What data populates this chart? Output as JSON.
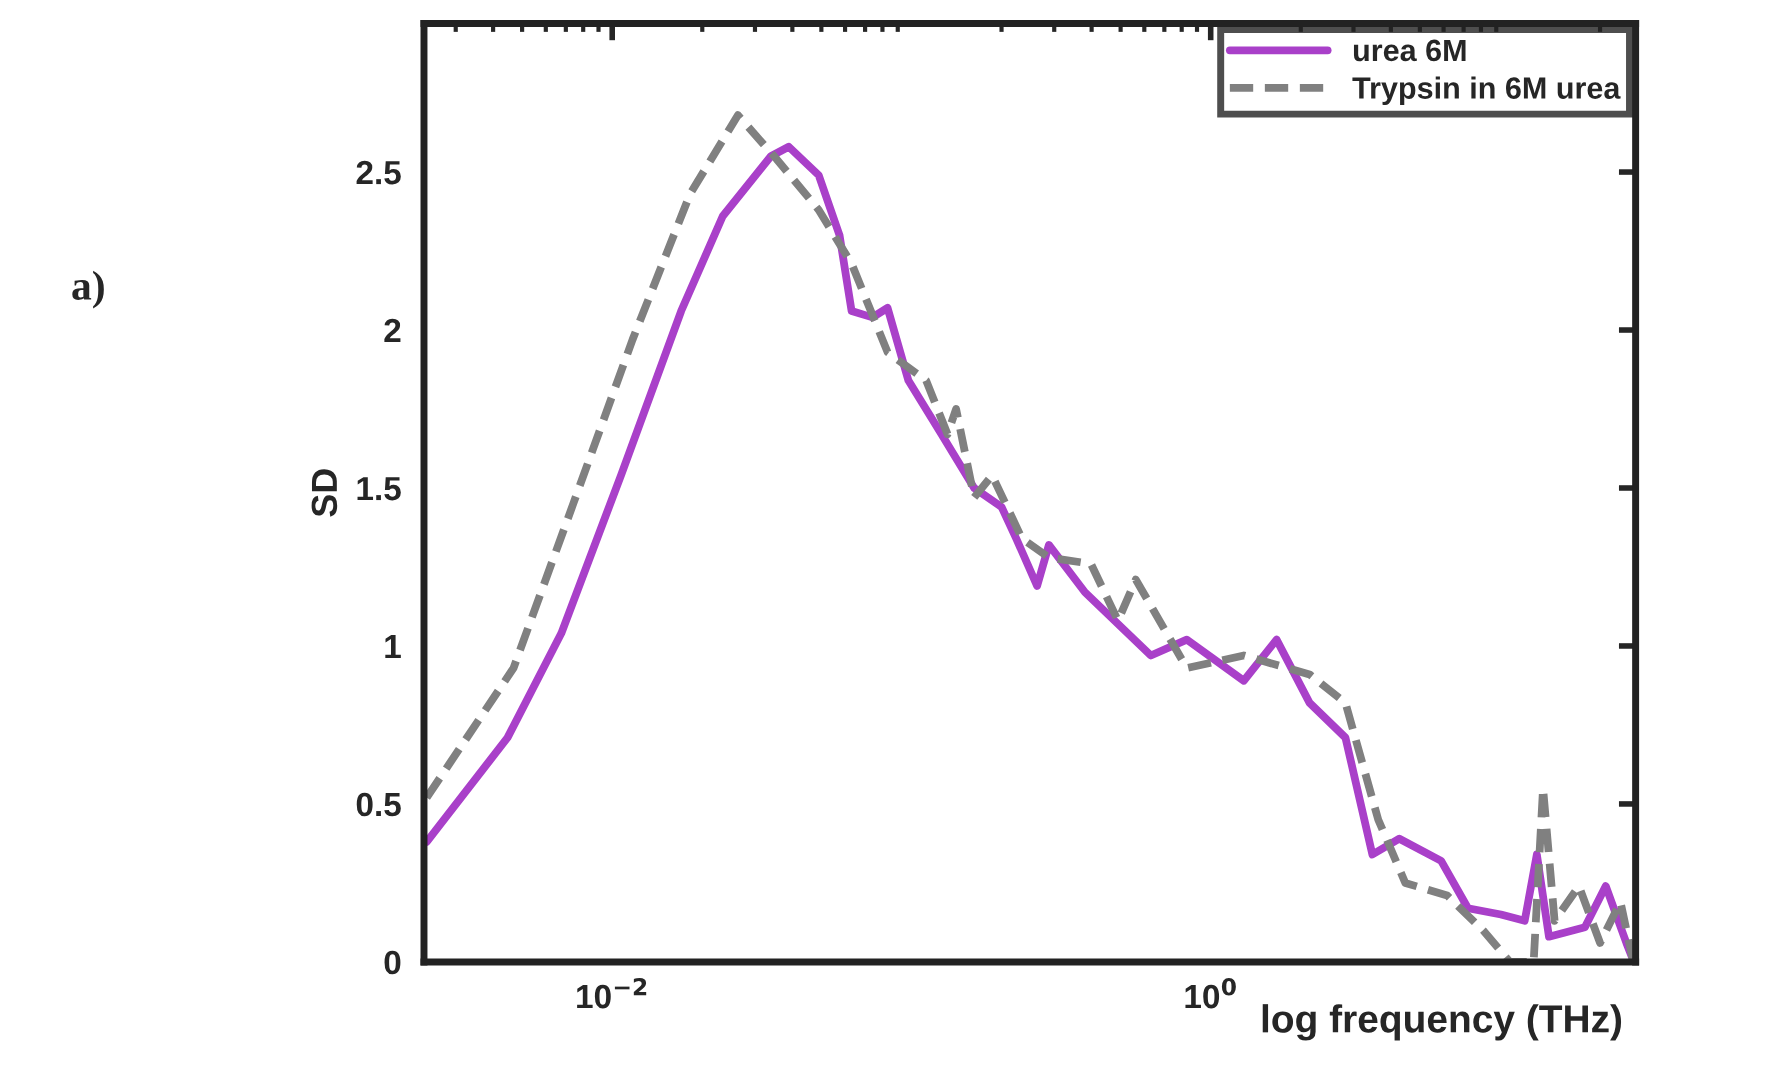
{
  "chart_data": {
    "type": "line",
    "ylabel": "SD",
    "xlabel": "log frequency (THz)",
    "annotations": [
      "a)"
    ],
    "log": "x",
    "xlim": [
      0.00235,
      26.3
    ],
    "ylim": [
      0,
      2.97
    ],
    "xticks": [
      {
        "value": 0.01,
        "label": "10$^{−2}$"
      },
      {
        "value": 1,
        "label": "10$^{0}$"
      }
    ],
    "yticks": [
      0,
      {
        "value": 0.5,
        "label": "0.5"
      },
      1,
      {
        "value": 1.5,
        "label": "1.5"
      },
      2,
      {
        "value": 2.5,
        "label": "2.5"
      }
    ],
    "grid": false,
    "legend": "top right",
    "series": [
      {
        "name": "urea 6M",
        "color": "#a940c9",
        "line_style": "solid",
        "x": [
          0.0024,
          0.00447,
          0.00676,
          0.0107,
          0.017,
          0.0234,
          0.0339,
          0.0389,
          0.049,
          0.0575,
          0.0631,
          0.0741,
          0.0832,
          0.0977,
          0.126,
          0.162,
          0.2,
          0.224,
          0.263,
          0.288,
          0.38,
          0.631,
          0.832,
          1.29,
          1.66,
          2.14,
          2.82,
          3.47,
          4.27,
          5.89,
          7.24,
          9.33,
          11.2,
          12.3,
          13.5,
          17.8,
          20.9,
          24.5,
          25.7
        ],
        "values": [
          0.38,
          0.71,
          1.04,
          1.54,
          2.06,
          2.36,
          2.55,
          2.58,
          2.49,
          2.3,
          2.06,
          2.04,
          2.07,
          1.84,
          1.67,
          1.5,
          1.44,
          1.34,
          1.19,
          1.32,
          1.17,
          0.97,
          1.02,
          0.89,
          1.02,
          0.82,
          0.71,
          0.34,
          0.39,
          0.32,
          0.17,
          0.15,
          0.13,
          0.34,
          0.08,
          0.11,
          0.24,
          0.06,
          0.01
        ]
      },
      {
        "name": "Trypsin in 6M urea",
        "color": "#808080",
        "line_style": "dashed",
        "x": [
          0.0024,
          0.00468,
          0.00741,
          0.0117,
          0.0182,
          0.0263,
          0.0355,
          0.049,
          0.0631,
          0.0832,
          0.112,
          0.132,
          0.141,
          0.162,
          0.186,
          0.234,
          0.288,
          0.398,
          0.49,
          0.562,
          0.832,
          1.29,
          2.14,
          2.82,
          3.63,
          4.47,
          6.17,
          8.13,
          10.0,
          12.0,
          12.9,
          14.1,
          17.0,
          20.0,
          23.4,
          25.7
        ],
        "values": [
          0.52,
          0.93,
          1.45,
          1.97,
          2.43,
          2.68,
          2.54,
          2.38,
          2.21,
          1.93,
          1.84,
          1.67,
          1.75,
          1.47,
          1.54,
          1.34,
          1.28,
          1.26,
          1.08,
          1.21,
          0.93,
          0.97,
          0.91,
          0.82,
          0.45,
          0.25,
          0.21,
          0.1,
          0.0,
          0.0,
          0.55,
          0.13,
          0.24,
          0.06,
          0.19,
          0.01
        ]
      }
    ]
  }
}
